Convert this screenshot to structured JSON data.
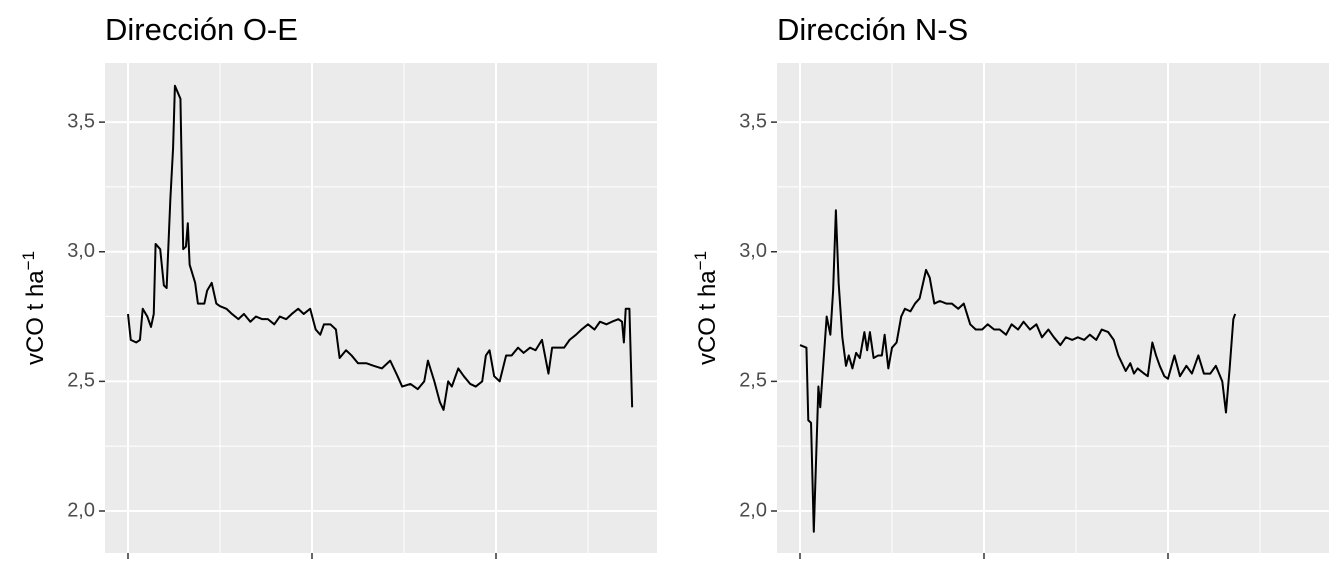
{
  "chart_data": [
    {
      "type": "line",
      "title": "Dirección O-E",
      "ylabel": "vCO t ha",
      "ylabel_superscript": "−1",
      "color": "#000000",
      "grid": true,
      "xlim": [
        -25,
        575
      ],
      "xticks": [
        0,
        200,
        400
      ],
      "xminor": [
        100,
        300,
        500
      ],
      "ylim": [
        1.838,
        3.728
      ],
      "yticks": [
        {
          "value": 2,
          "label": "2,0"
        },
        {
          "value": 2.5,
          "label": "2,5"
        },
        {
          "value": 3,
          "label": "3,0"
        },
        {
          "value": 3.5,
          "label": "3,5"
        }
      ],
      "yminor": [
        2.25,
        2.75,
        3.25
      ],
      "x": [
        0,
        3,
        9,
        13,
        16,
        21,
        25,
        28,
        30,
        35,
        39,
        42,
        46,
        49,
        51,
        57,
        60,
        63,
        65,
        67,
        73,
        76,
        83,
        86,
        91,
        96,
        100,
        107,
        113,
        120,
        126,
        133,
        139,
        146,
        152,
        159,
        165,
        172,
        178,
        185,
        191,
        198,
        204,
        209,
        213,
        220,
        226,
        230,
        237,
        243,
        250,
        259,
        267,
        276,
        285,
        293,
        298,
        307,
        315,
        322,
        326,
        333,
        339,
        343,
        348,
        352,
        359,
        365,
        372,
        378,
        385,
        389,
        393,
        398,
        404,
        411,
        417,
        424,
        430,
        437,
        443,
        450,
        457,
        461,
        467,
        474,
        480,
        487,
        493,
        500,
        507,
        513,
        520,
        526,
        533,
        537,
        539,
        541,
        545,
        548
      ],
      "values": [
        2.76,
        2.66,
        2.65,
        2.66,
        2.78,
        2.75,
        2.71,
        2.76,
        3.03,
        3.01,
        2.87,
        2.86,
        3.2,
        3.4,
        3.64,
        3.59,
        3.01,
        3.02,
        3.11,
        2.95,
        2.88,
        2.8,
        2.8,
        2.85,
        2.88,
        2.8,
        2.79,
        2.78,
        2.76,
        2.74,
        2.76,
        2.73,
        2.75,
        2.74,
        2.74,
        2.72,
        2.75,
        2.74,
        2.76,
        2.78,
        2.76,
        2.78,
        2.7,
        2.68,
        2.72,
        2.72,
        2.7,
        2.59,
        2.62,
        2.6,
        2.57,
        2.57,
        2.56,
        2.55,
        2.58,
        2.52,
        2.48,
        2.49,
        2.47,
        2.5,
        2.58,
        2.5,
        2.42,
        2.39,
        2.5,
        2.48,
        2.55,
        2.52,
        2.49,
        2.48,
        2.5,
        2.6,
        2.62,
        2.52,
        2.5,
        2.6,
        2.6,
        2.63,
        2.61,
        2.63,
        2.62,
        2.66,
        2.53,
        2.63,
        2.63,
        2.63,
        2.66,
        2.68,
        2.7,
        2.72,
        2.7,
        2.73,
        2.72,
        2.73,
        2.74,
        2.73,
        2.65,
        2.78,
        2.78,
        2.4
      ]
    },
    {
      "type": "line",
      "title": "Dirección N-S",
      "ylabel": "vCO t ha",
      "ylabel_superscript": "−1",
      "color": "#000000",
      "grid": true,
      "xlim": [
        -25,
        575
      ],
      "xticks": [
        0,
        200,
        400
      ],
      "xminor": [
        100,
        300,
        500
      ],
      "ylim": [
        1.838,
        3.728
      ],
      "yticks": [
        {
          "value": 2,
          "label": "2,0"
        },
        {
          "value": 2.5,
          "label": "2,5"
        },
        {
          "value": 3,
          "label": "3,0"
        },
        {
          "value": 3.5,
          "label": "3,5"
        }
      ],
      "yminor": [
        2.25,
        2.75,
        3.25
      ],
      "x": [
        0,
        7,
        9,
        12,
        15,
        20,
        22,
        25,
        29,
        33,
        36,
        39,
        42,
        46,
        50,
        53,
        57,
        61,
        65,
        70,
        73,
        76,
        80,
        85,
        89,
        92,
        96,
        100,
        105,
        110,
        114,
        120,
        125,
        130,
        137,
        141,
        146,
        152,
        159,
        165,
        172,
        178,
        185,
        191,
        198,
        204,
        211,
        217,
        224,
        230,
        237,
        243,
        250,
        257,
        263,
        270,
        276,
        283,
        289,
        296,
        302,
        309,
        315,
        322,
        328,
        335,
        341,
        346,
        350,
        354,
        359,
        363,
        367,
        374,
        378,
        383,
        387,
        391,
        396,
        400,
        407,
        413,
        420,
        426,
        433,
        439,
        446,
        452,
        459,
        463,
        467,
        471,
        473
      ],
      "values": [
        2.64,
        2.63,
        2.35,
        2.34,
        1.92,
        2.48,
        2.4,
        2.55,
        2.75,
        2.68,
        2.85,
        3.16,
        2.88,
        2.67,
        2.56,
        2.6,
        2.55,
        2.61,
        2.59,
        2.69,
        2.62,
        2.69,
        2.59,
        2.6,
        2.6,
        2.68,
        2.55,
        2.63,
        2.65,
        2.75,
        2.78,
        2.77,
        2.8,
        2.82,
        2.93,
        2.9,
        2.8,
        2.81,
        2.8,
        2.8,
        2.78,
        2.8,
        2.72,
        2.7,
        2.7,
        2.72,
        2.7,
        2.7,
        2.68,
        2.72,
        2.7,
        2.73,
        2.7,
        2.72,
        2.67,
        2.7,
        2.67,
        2.64,
        2.67,
        2.66,
        2.67,
        2.66,
        2.68,
        2.66,
        2.7,
        2.69,
        2.66,
        2.6,
        2.57,
        2.54,
        2.57,
        2.53,
        2.55,
        2.53,
        2.52,
        2.65,
        2.6,
        2.56,
        2.52,
        2.51,
        2.6,
        2.52,
        2.56,
        2.53,
        2.6,
        2.53,
        2.53,
        2.56,
        2.5,
        2.38,
        2.55,
        2.74,
        2.76
      ]
    }
  ]
}
